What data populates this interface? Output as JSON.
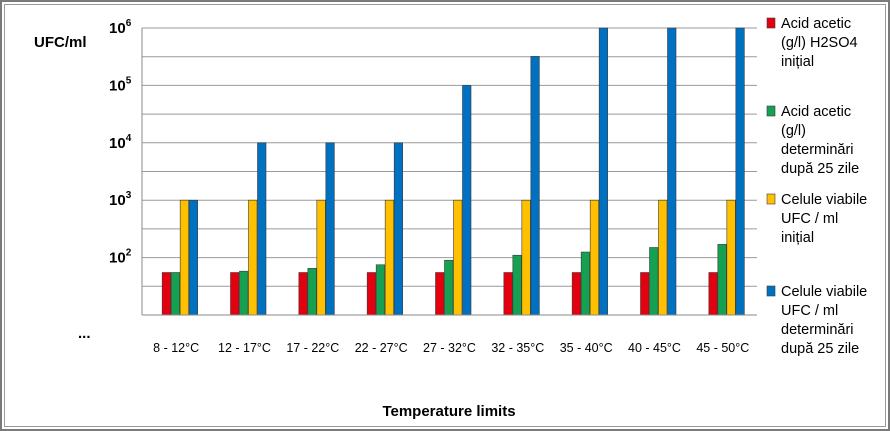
{
  "chart_data": {
    "type": "bar",
    "ylabel": "UFC/ml",
    "xlabel": "Temperature limits",
    "y_scale": "log",
    "ylim": [
      10,
      1000000
    ],
    "y_ticks": [
      {
        "base": "10",
        "exp": "6",
        "value": 1000000
      },
      {
        "base": "10",
        "exp": "5",
        "value": 100000
      },
      {
        "base": "10",
        "exp": "4",
        "value": 10000
      },
      {
        "base": "10",
        "exp": "3",
        "value": 1000
      },
      {
        "base": "10",
        "exp": "2",
        "value": 100
      }
    ],
    "y_bottom_label": "...",
    "categories": [
      "8 - 12°C",
      "12 - 17°C",
      "17 - 22°C",
      "22 - 27°C",
      "27 - 32°C",
      "32 - 35°C",
      "35 - 40°C",
      "40 - 45°C",
      "45 - 50°C"
    ],
    "series": [
      {
        "name": "Acid acetic (g/l) H2SO4 inițial",
        "color": "#e3000f",
        "values": [
          55,
          55,
          55,
          55,
          55,
          55,
          55,
          55,
          55
        ]
      },
      {
        "name": "Acid acetic (g/l) determinări după 25 zile",
        "color": "#16a052",
        "values": [
          55,
          58,
          65,
          75,
          90,
          110,
          125,
          150,
          170
        ]
      },
      {
        "name": "Celule viabile UFC / ml inițial",
        "color": "#ffc000",
        "values": [
          1000,
          1000,
          1000,
          1000,
          1000,
          1000,
          1000,
          1000,
          1000
        ]
      },
      {
        "name": "Celule viabile UFC / ml determinări după 25 zile",
        "color": "#0070c0",
        "values": [
          1000,
          10000,
          10000,
          10000,
          100000,
          320000,
          1000000,
          1000000,
          1000000
        ]
      }
    ],
    "legend_position": "right",
    "grid": true
  },
  "legend_lines": [
    [
      "Acid acetic",
      "(g/l) H2SO4",
      "inițial"
    ],
    [
      "Acid acetic",
      "(g/l)",
      "determinări",
      "după 25 zile"
    ],
    [
      "Celule viabile",
      "UFC / ml",
      "inițial"
    ],
    [
      "Celule viabile",
      "UFC / ml",
      "determinări",
      "după 25 zile"
    ]
  ]
}
